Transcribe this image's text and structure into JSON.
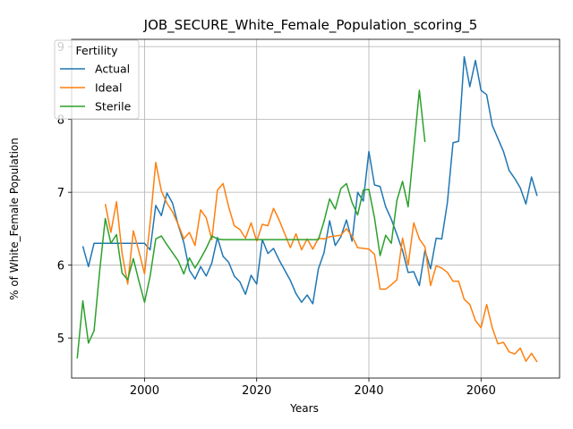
{
  "chart_data": {
    "type": "line",
    "title": "JOB_SECURE_White_Female_Population_scoring_5",
    "xlabel": "Years",
    "ylabel": "% of White_Female Population",
    "xlim": [
      1987,
      2074
    ],
    "ylim": [
      4.45,
      9.1
    ],
    "xticks": [
      2000,
      2020,
      2040,
      2060
    ],
    "yticks": [
      5,
      6,
      7,
      8,
      9
    ],
    "grid": true,
    "legend": {
      "title": "Fertility",
      "placement": "top-left"
    },
    "series": [
      {
        "name": "Actual",
        "color": "#1f77b4",
        "x": [
          1989,
          1990,
          1991,
          1992,
          1993,
          1994,
          1995,
          1996,
          1997,
          1998,
          1999,
          2000,
          2001,
          2002,
          2003,
          2004,
          2005,
          2006,
          2007,
          2008,
          2009,
          2010,
          2011,
          2012,
          2013,
          2014,
          2015,
          2016,
          2017,
          2018,
          2019,
          2020,
          2021,
          2022,
          2023,
          2024,
          2025,
          2026,
          2027,
          2028,
          2029,
          2030,
          2031,
          2032,
          2033,
          2034,
          2035,
          2036,
          2037,
          2038,
          2039,
          2040,
          2041,
          2042,
          2043,
          2044,
          2045,
          2046,
          2047,
          2048,
          2049,
          2050,
          2051,
          2052,
          2053,
          2054,
          2055,
          2056,
          2057,
          2058,
          2059,
          2060,
          2061,
          2062,
          2063,
          2064,
          2065,
          2066,
          2067,
          2068,
          2069,
          2070
        ],
        "y": [
          6.26,
          5.98,
          6.3,
          6.3,
          6.3,
          6.3,
          6.3,
          6.3,
          6.3,
          6.3,
          6.3,
          6.3,
          6.21,
          6.82,
          6.68,
          6.99,
          6.85,
          6.55,
          6.31,
          5.93,
          5.81,
          5.98,
          5.85,
          6.03,
          6.38,
          6.12,
          6.04,
          5.85,
          5.77,
          5.6,
          5.86,
          5.74,
          6.35,
          6.16,
          6.23,
          6.07,
          5.93,
          5.79,
          5.61,
          5.49,
          5.59,
          5.47,
          5.95,
          6.17,
          6.61,
          6.27,
          6.39,
          6.62,
          6.33,
          7.0,
          6.88,
          7.56,
          7.1,
          7.08,
          6.8,
          6.63,
          6.42,
          6.2,
          5.9,
          5.91,
          5.72,
          6.2,
          5.95,
          6.37,
          6.36,
          6.86,
          7.68,
          7.7,
          8.86,
          8.45,
          8.81,
          8.4,
          8.34,
          7.92,
          7.74,
          7.56,
          7.3,
          7.19,
          7.06,
          6.84,
          7.21,
          6.95
        ]
      },
      {
        "name": "Ideal",
        "color": "#ff7f0e",
        "x": [
          1993,
          1994,
          1995,
          1996,
          1997,
          1998,
          1999,
          2000,
          2001,
          2002,
          2003,
          2004,
          2005,
          2006,
          2007,
          2008,
          2009,
          2010,
          2011,
          2012,
          2013,
          2014,
          2015,
          2016,
          2017,
          2018,
          2019,
          2020,
          2021,
          2022,
          2023,
          2024,
          2025,
          2026,
          2027,
          2028,
          2029,
          2030,
          2031,
          2032,
          2033,
          2034,
          2035,
          2036,
          2037,
          2038,
          2039,
          2040,
          2041,
          2042,
          2043,
          2044,
          2045,
          2046,
          2047,
          2048,
          2049,
          2050,
          2051,
          2052,
          2053,
          2054,
          2055,
          2056,
          2057,
          2058,
          2059,
          2060,
          2061,
          2062,
          2063,
          2064,
          2065,
          2066,
          2067,
          2068,
          2069,
          2070
        ],
        "y": [
          6.84,
          6.45,
          6.87,
          6.16,
          5.74,
          6.47,
          6.19,
          5.88,
          6.58,
          7.41,
          7.02,
          6.85,
          6.73,
          6.56,
          6.36,
          6.45,
          6.27,
          6.76,
          6.65,
          6.35,
          7.03,
          7.12,
          6.8,
          6.54,
          6.49,
          6.37,
          6.58,
          6.33,
          6.56,
          6.54,
          6.78,
          6.62,
          6.43,
          6.24,
          6.43,
          6.21,
          6.36,
          6.22,
          6.37,
          6.36,
          6.39,
          6.4,
          6.41,
          6.5,
          6.4,
          6.24,
          6.23,
          6.22,
          6.15,
          5.67,
          5.67,
          5.73,
          5.8,
          6.37,
          6.0,
          6.58,
          6.36,
          6.25,
          5.72,
          5.99,
          5.96,
          5.9,
          5.78,
          5.78,
          5.53,
          5.46,
          5.24,
          5.14,
          5.46,
          5.14,
          4.92,
          4.94,
          4.81,
          4.78,
          4.86,
          4.68,
          4.79,
          4.67
        ]
      },
      {
        "name": "Sterile",
        "color": "#2ca02c",
        "x": [
          1988,
          1989,
          1990,
          1991,
          1992,
          1993,
          1994,
          1995,
          1996,
          1997,
          1998,
          1999,
          2000,
          2001,
          2002,
          2003,
          2004,
          2005,
          2006,
          2007,
          2008,
          2009,
          2010,
          2011,
          2012,
          2013,
          2014,
          2015,
          2016,
          2017,
          2018,
          2019,
          2020,
          2021,
          2022,
          2023,
          2024,
          2025,
          2026,
          2027,
          2028,
          2029,
          2030,
          2031,
          2032,
          2033,
          2034,
          2035,
          2036,
          2037,
          2038,
          2039,
          2040,
          2041,
          2042,
          2043,
          2044,
          2045,
          2046,
          2047,
          2048,
          2049,
          2050
        ],
        "y": [
          4.72,
          5.51,
          4.93,
          5.1,
          5.92,
          6.64,
          6.3,
          6.42,
          5.89,
          5.8,
          6.09,
          5.78,
          5.49,
          5.85,
          6.36,
          6.4,
          6.28,
          6.17,
          6.06,
          5.88,
          6.1,
          5.96,
          6.09,
          6.23,
          6.4,
          6.36,
          6.35,
          6.35,
          6.35,
          6.35,
          6.35,
          6.35,
          6.35,
          6.35,
          6.35,
          6.35,
          6.35,
          6.35,
          6.35,
          6.35,
          6.35,
          6.35,
          6.35,
          6.35,
          6.6,
          6.91,
          6.77,
          7.05,
          7.12,
          6.86,
          6.69,
          7.03,
          7.04,
          6.65,
          6.13,
          6.41,
          6.3,
          6.89,
          7.15,
          6.8,
          7.6,
          8.4,
          7.69
        ]
      }
    ]
  }
}
